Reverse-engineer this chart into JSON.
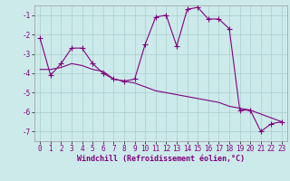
{
  "xlabel": "Windchill (Refroidissement éolien,°C)",
  "x": [
    0,
    1,
    2,
    3,
    4,
    5,
    6,
    7,
    8,
    9,
    10,
    11,
    12,
    13,
    14,
    15,
    16,
    17,
    18,
    19,
    20,
    21,
    22,
    23
  ],
  "y_main": [
    -2.2,
    -4.1,
    -3.5,
    -2.7,
    -2.7,
    -3.5,
    -4.0,
    -4.3,
    -4.4,
    -4.3,
    -2.5,
    -1.1,
    -1.0,
    -2.6,
    -0.7,
    -0.6,
    -1.2,
    -1.2,
    -1.7,
    -5.9,
    -5.9,
    -7.0,
    -6.6,
    -6.5
  ],
  "y_trend": [
    -3.8,
    -3.8,
    -3.7,
    -3.5,
    -3.6,
    -3.8,
    -3.9,
    -4.3,
    -4.4,
    -4.5,
    -4.7,
    -4.9,
    -5.0,
    -5.1,
    -5.2,
    -5.3,
    -5.4,
    -5.5,
    -5.7,
    -5.8,
    -5.9,
    -6.1,
    -6.3,
    -6.5
  ],
  "line_color": "#800080",
  "bg_color": "#cceaea",
  "grid_color": "#aacccc",
  "ylim": [
    -7.5,
    -0.5
  ],
  "xlim": [
    -0.5,
    23.5
  ],
  "yticks": [
    -7,
    -6,
    -5,
    -4,
    -3,
    -2,
    -1
  ],
  "xticks": [
    0,
    1,
    2,
    3,
    4,
    5,
    6,
    7,
    8,
    9,
    10,
    11,
    12,
    13,
    14,
    15,
    16,
    17,
    18,
    19,
    20,
    21,
    22,
    23
  ],
  "marker": "+",
  "linewidth": 0.8,
  "markersize": 4,
  "tick_fontsize": 5.5,
  "xlabel_fontsize": 6.0
}
